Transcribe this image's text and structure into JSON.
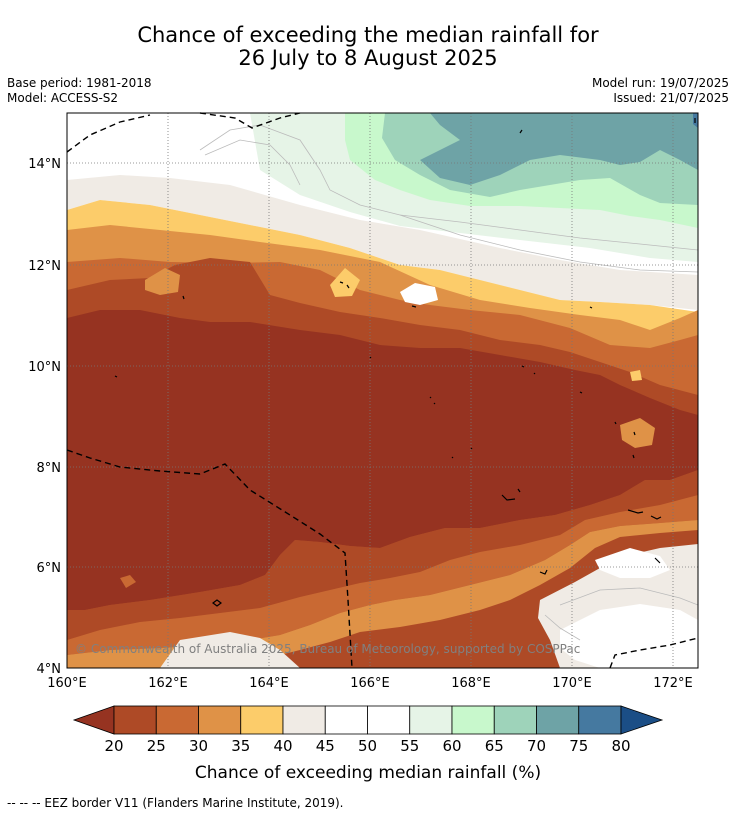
{
  "title_line1": "Chance of exceeding the median rainfall for",
  "title_line2": "26 July to 8 August 2025",
  "base_period": "Base period: 1981-2018",
  "model": "Model: ACCESS-S2",
  "model_run": "Model run: 19/07/2025",
  "issued": "Issued: 21/07/2025",
  "copyright": "© Commonwealth of Australia 2025, Bureau of Meteorology, supported by COSPPac",
  "lat_labels": [
    "14°N",
    "12°N",
    "10°N",
    "8°N",
    "6°N",
    "4°N"
  ],
  "lon_labels": [
    "160°E",
    "162°E",
    "164°E",
    "166°E",
    "168°E",
    "170°E",
    "172°E"
  ],
  "colorbar": {
    "ticks": [
      "20",
      "25",
      "30",
      "35",
      "40",
      "45",
      "50",
      "55",
      "60",
      "65",
      "70",
      "75",
      "80"
    ],
    "colors": [
      "#963321",
      "#ae4a26",
      "#c96933",
      "#df9247",
      "#fccc6a",
      "#f0ebe5",
      "#ffffff",
      "#ffffff",
      "#e6f4e7",
      "#c8f8cc",
      "#9ed3ba",
      "#6ea3a6",
      "#4579a0",
      "#1b4e86"
    ],
    "label": "Chance of exceeding median rainfall (%)"
  },
  "eez_note": "--  --  -- EEZ border V11 (Flanders Marine Institute, 2019)."
}
